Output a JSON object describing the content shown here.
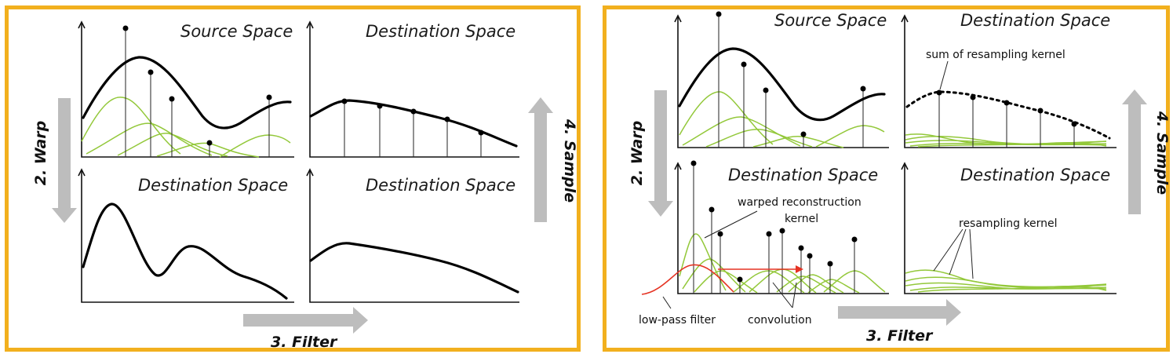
{
  "left_panel": {
    "titles": {
      "top_left": "Source Space",
      "top_right": "Destination Space",
      "bottom_left": "Destination Space",
      "bottom_right": "Destination Space"
    },
    "steps": {
      "warp": "2. Warp",
      "filter": "3. Filter",
      "sample": "4. Sample"
    }
  },
  "right_panel": {
    "titles": {
      "top_left": "Source Space",
      "top_right": "Destination Space",
      "bottom_left": "Destination Space",
      "bottom_right": "Destination Space"
    },
    "annotations": {
      "sum_kernel": "sum of resampling kernel",
      "warped_kernel_line1": "warped reconstruction",
      "warped_kernel_line2": "kernel",
      "resampling_kernel": "resampling kernel",
      "low_pass": "low-pass filter",
      "convolution": "convolution"
    },
    "steps": {
      "warp": "2. Warp",
      "filter": "3. Filter",
      "sample": "4. Sample"
    }
  },
  "colors": {
    "frame_border": "#f2b01e",
    "kernel_green": "#93c83a",
    "filter_red": "#e53323",
    "arrow_gray": "#bdbdbd"
  }
}
